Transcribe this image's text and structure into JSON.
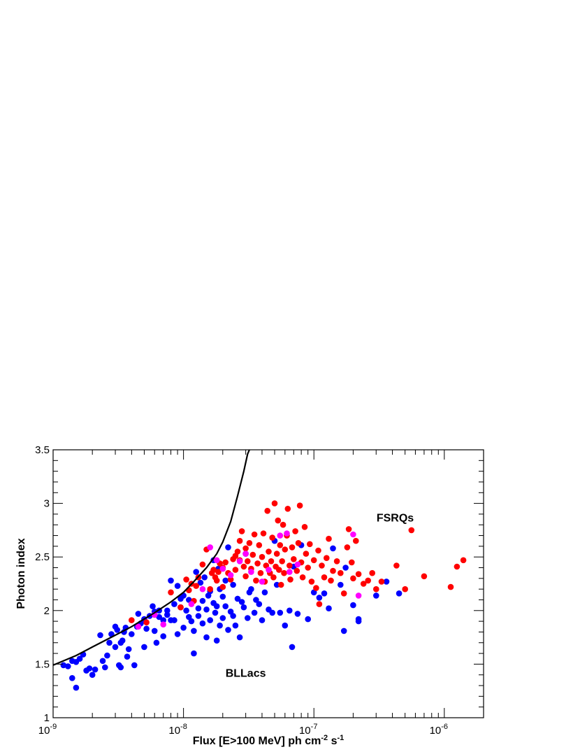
{
  "chart_data": {
    "type": "scatter",
    "title": "",
    "xlabel": "Flux [E>100 MeV] ph cm",
    "xlabel_sup1": "-2",
    "xlabel_mid": " s",
    "xlabel_sup2": "-1",
    "ylabel": "Photon index",
    "x_scale": "log",
    "xlim": [
      1e-09,
      2e-06
    ],
    "ylim": [
      1.0,
      3.5
    ],
    "grid": false,
    "x_ticks": [
      {
        "value": 1e-09,
        "base": "10",
        "exp": "-9"
      },
      {
        "value": 1e-08,
        "base": "10",
        "exp": "-8"
      },
      {
        "value": 1e-07,
        "base": "10",
        "exp": "-7"
      },
      {
        "value": 1e-06,
        "base": "10",
        "exp": "-6"
      }
    ],
    "y_ticks": [
      {
        "value": 1.0,
        "label": "1"
      },
      {
        "value": 1.5,
        "label": "1.5"
      },
      {
        "value": 2.0,
        "label": "2"
      },
      {
        "value": 2.5,
        "label": "2.5"
      },
      {
        "value": 3.0,
        "label": "3"
      },
      {
        "value": 3.5,
        "label": "3.5"
      }
    ],
    "annotations": [
      {
        "text": "FSRQs",
        "x": 4.2e-07,
        "y": 2.87
      },
      {
        "text": "BLLacs",
        "x": 3e-08,
        "y": 1.42
      }
    ],
    "curve": {
      "color": "#000000",
      "points": [
        [
          1e-09,
          1.49
        ],
        [
          1.5e-09,
          1.58
        ],
        [
          2e-09,
          1.66
        ],
        [
          3e-09,
          1.77
        ],
        [
          4e-09,
          1.85
        ],
        [
          6e-09,
          1.98
        ],
        [
          8e-09,
          2.08
        ],
        [
          1e-08,
          2.17
        ],
        [
          1.2e-08,
          2.27
        ],
        [
          1.5e-08,
          2.4
        ],
        [
          1.8e-08,
          2.53
        ],
        [
          2e-08,
          2.64
        ],
        [
          2.3e-08,
          2.83
        ],
        [
          2.6e-08,
          3.07
        ],
        [
          2.9e-08,
          3.3
        ],
        [
          3.1e-08,
          3.46
        ],
        [
          3.2e-08,
          3.5
        ]
      ]
    },
    "series": [
      {
        "color": "#0000ff",
        "points": [
          [
            1.2e-09,
            1.49
          ],
          [
            1.3e-09,
            1.48
          ],
          [
            1.4e-09,
            1.53
          ],
          [
            1.4e-09,
            1.37
          ],
          [
            1.5e-09,
            1.28
          ],
          [
            1.5e-09,
            1.52
          ],
          [
            1.6e-09,
            1.55
          ],
          [
            1.7e-09,
            1.59
          ],
          [
            1.8e-09,
            1.44
          ],
          [
            1.9e-09,
            1.46
          ],
          [
            2e-09,
            1.4
          ],
          [
            2.1e-09,
            1.45
          ],
          [
            2.3e-09,
            1.77
          ],
          [
            2.4e-09,
            1.53
          ],
          [
            2.5e-09,
            1.47
          ],
          [
            2.6e-09,
            1.58
          ],
          [
            2.7e-09,
            1.7
          ],
          [
            2.8e-09,
            1.78
          ],
          [
            3e-09,
            1.85
          ],
          [
            3e-09,
            1.66
          ],
          [
            3.1e-09,
            1.82
          ],
          [
            3.2e-09,
            1.49
          ],
          [
            3.3e-09,
            1.47
          ],
          [
            3.3e-09,
            1.7
          ],
          [
            3.4e-09,
            1.72
          ],
          [
            3.5e-09,
            1.8
          ],
          [
            3.6e-09,
            1.84
          ],
          [
            3.7e-09,
            1.57
          ],
          [
            3.8e-09,
            1.64
          ],
          [
            4e-09,
            1.78
          ],
          [
            4.2e-09,
            1.49
          ],
          [
            4.4e-09,
            1.85
          ],
          [
            4.5e-09,
            1.97
          ],
          [
            4.7e-09,
            1.88
          ],
          [
            5e-09,
            1.66
          ],
          [
            5e-09,
            1.92
          ],
          [
            5.2e-09,
            1.83
          ],
          [
            5.5e-09,
            1.95
          ],
          [
            5.8e-09,
            2.04
          ],
          [
            6e-09,
            1.99
          ],
          [
            6e-09,
            1.81
          ],
          [
            6.2e-09,
            1.7
          ],
          [
            6.5e-09,
            1.94
          ],
          [
            6.5e-09,
            2.0
          ],
          [
            7e-09,
            1.91
          ],
          [
            7e-09,
            1.76
          ],
          [
            7.5e-09,
            2.0
          ],
          [
            7.5e-09,
            1.96
          ],
          [
            8e-09,
            1.91
          ],
          [
            8e-09,
            2.28
          ],
          [
            8.5e-09,
            2.06
          ],
          [
            8.5e-09,
            1.91
          ],
          [
            9e-09,
            2.23
          ],
          [
            9e-09,
            1.78
          ],
          [
            9.5e-09,
            2.03
          ],
          [
            9.5e-09,
            2.11
          ],
          [
            1e-08,
            2.14
          ],
          [
            1e-08,
            1.84
          ],
          [
            1.05e-08,
            2.0
          ],
          [
            1.1e-08,
            1.94
          ],
          [
            1.1e-08,
            2.1
          ],
          [
            1.15e-08,
            1.9
          ],
          [
            1.2e-08,
            1.81
          ],
          [
            1.2e-08,
            1.6
          ],
          [
            1.25e-08,
            2.36
          ],
          [
            1.3e-08,
            2.02
          ],
          [
            1.3e-08,
            1.95
          ],
          [
            1.35e-08,
            2.26
          ],
          [
            1.4e-08,
            1.88
          ],
          [
            1.4e-08,
            2.09
          ],
          [
            1.45e-08,
            2.31
          ],
          [
            1.5e-08,
            2.01
          ],
          [
            1.5e-08,
            1.75
          ],
          [
            1.55e-08,
            2.14
          ],
          [
            1.6e-08,
            2.18
          ],
          [
            1.6e-08,
            1.91
          ],
          [
            1.7e-08,
            2.47
          ],
          [
            1.7e-08,
            2.07
          ],
          [
            1.75e-08,
            1.98
          ],
          [
            1.8e-08,
            1.72
          ],
          [
            1.8e-08,
            2.04
          ],
          [
            1.85e-08,
            2.39
          ],
          [
            1.9e-08,
            2.2
          ],
          [
            1.9e-08,
            1.86
          ],
          [
            2e-08,
            2.13
          ],
          [
            2e-08,
            1.93
          ],
          [
            2.1e-08,
            2.28
          ],
          [
            2.1e-08,
            2.04
          ],
          [
            2.2e-08,
            1.82
          ],
          [
            2.2e-08,
            2.59
          ],
          [
            2.3e-08,
            1.99
          ],
          [
            2.4e-08,
            2.24
          ],
          [
            2.4e-08,
            1.95
          ],
          [
            2.5e-08,
            1.86
          ],
          [
            2.6e-08,
            2.11
          ],
          [
            2.7e-08,
            1.75
          ],
          [
            2.8e-08,
            2.08
          ],
          [
            2.9e-08,
            2.03
          ],
          [
            3e-08,
            2.53
          ],
          [
            3.1e-08,
            1.93
          ],
          [
            3.2e-08,
            2.17
          ],
          [
            3.3e-08,
            2.2
          ],
          [
            3.5e-08,
            1.98
          ],
          [
            3.6e-08,
            2.1
          ],
          [
            3.8e-08,
            2.06
          ],
          [
            4e-08,
            1.91
          ],
          [
            4.2e-08,
            2.17
          ],
          [
            4.5e-08,
            2.01
          ],
          [
            4.8e-08,
            1.98
          ],
          [
            5e-08,
            2.65
          ],
          [
            5.2e-08,
            2.24
          ],
          [
            5.5e-08,
            1.98
          ],
          [
            6e-08,
            1.86
          ],
          [
            6.5e-08,
            2.0
          ],
          [
            6.8e-08,
            1.66
          ],
          [
            7e-08,
            2.41
          ],
          [
            7.5e-08,
            1.97
          ],
          [
            8e-08,
            2.61
          ],
          [
            9e-08,
            1.92
          ],
          [
            1e-07,
            2.17
          ],
          [
            1.1e-07,
            2.12
          ],
          [
            1.2e-07,
            2.16
          ],
          [
            1.3e-07,
            2.02
          ],
          [
            1.4e-07,
            2.58
          ],
          [
            1.6e-07,
            2.24
          ],
          [
            1.7e-07,
            1.81
          ],
          [
            1.75e-07,
            2.4
          ],
          [
            2e-07,
            2.05
          ],
          [
            2.2e-07,
            1.92
          ],
          [
            2.2e-07,
            1.9
          ],
          [
            3e-07,
            2.14
          ],
          [
            3.6e-07,
            2.27
          ],
          [
            4.5e-07,
            2.16
          ]
        ]
      },
      {
        "color": "#ff0000",
        "points": [
          [
            4e-09,
            1.91
          ],
          [
            5.2e-09,
            1.89
          ],
          [
            8e-09,
            2.17
          ],
          [
            9.5e-09,
            2.03
          ],
          [
            1.05e-08,
            2.29
          ],
          [
            1.1e-08,
            2.19
          ],
          [
            1.15e-08,
            2.25
          ],
          [
            1.2e-08,
            2.09
          ],
          [
            1.25e-08,
            2.23
          ],
          [
            1.3e-08,
            2.31
          ],
          [
            1.4e-08,
            2.43
          ],
          [
            1.5e-08,
            2.57
          ],
          [
            1.6e-08,
            2.2
          ],
          [
            1.65e-08,
            2.35
          ],
          [
            1.7e-08,
            2.38
          ],
          [
            1.75e-08,
            2.31
          ],
          [
            1.8e-08,
            2.28
          ],
          [
            1.85e-08,
            2.36
          ],
          [
            1.9e-08,
            2.44
          ],
          [
            2e-08,
            2.4
          ],
          [
            2e-08,
            2.22
          ],
          [
            2.1e-08,
            2.45
          ],
          [
            2.2e-08,
            2.35
          ],
          [
            2.3e-08,
            2.29
          ],
          [
            2.4e-08,
            2.48
          ],
          [
            2.5e-08,
            2.51
          ],
          [
            2.5e-08,
            2.38
          ],
          [
            2.6e-08,
            2.55
          ],
          [
            2.7e-08,
            2.65
          ],
          [
            2.7e-08,
            2.47
          ],
          [
            2.8e-08,
            2.74
          ],
          [
            2.9e-08,
            2.41
          ],
          [
            3e-08,
            2.32
          ],
          [
            3e-08,
            2.58
          ],
          [
            3.1e-08,
            2.46
          ],
          [
            3.2e-08,
            2.63
          ],
          [
            3.3e-08,
            2.39
          ],
          [
            3.4e-08,
            2.52
          ],
          [
            3.5e-08,
            2.71
          ],
          [
            3.6e-08,
            2.28
          ],
          [
            3.7e-08,
            2.44
          ],
          [
            3.8e-08,
            2.61
          ],
          [
            3.9e-08,
            2.35
          ],
          [
            4e-08,
            2.5
          ],
          [
            4.1e-08,
            2.72
          ],
          [
            4.2e-08,
            2.27
          ],
          [
            4.3e-08,
            2.42
          ],
          [
            4.4e-08,
            2.93
          ],
          [
            4.5e-08,
            2.55
          ],
          [
            4.6e-08,
            2.35
          ],
          [
            4.7e-08,
            2.46
          ],
          [
            4.8e-08,
            2.68
          ],
          [
            4.9e-08,
            2.31
          ],
          [
            5e-08,
            3.0
          ],
          [
            5.1e-08,
            2.41
          ],
          [
            5.2e-08,
            2.53
          ],
          [
            5.3e-08,
            2.84
          ],
          [
            5.4e-08,
            2.38
          ],
          [
            5.5e-08,
            2.61
          ],
          [
            5.6e-08,
            2.24
          ],
          [
            5.7e-08,
            2.46
          ],
          [
            5.8e-08,
            2.8
          ],
          [
            5.9e-08,
            2.35
          ],
          [
            6e-08,
            2.57
          ],
          [
            6.2e-08,
            2.7
          ],
          [
            6.3e-08,
            2.95
          ],
          [
            6.5e-08,
            2.42
          ],
          [
            6.6e-08,
            2.29
          ],
          [
            6.8e-08,
            2.59
          ],
          [
            7e-08,
            2.48
          ],
          [
            7.2e-08,
            2.74
          ],
          [
            7.4e-08,
            2.37
          ],
          [
            7.6e-08,
            2.63
          ],
          [
            7.8e-08,
            2.98
          ],
          [
            8e-08,
            2.45
          ],
          [
            8.2e-08,
            2.31
          ],
          [
            8.5e-08,
            2.78
          ],
          [
            8.7e-08,
            2.53
          ],
          [
            9e-08,
            2.4
          ],
          [
            9.3e-08,
            2.62
          ],
          [
            9.6e-08,
            2.27
          ],
          [
            1e-07,
            2.47
          ],
          [
            1.04e-07,
            2.21
          ],
          [
            1.08e-07,
            2.56
          ],
          [
            1.1e-07,
            2.06
          ],
          [
            1.15e-07,
            2.42
          ],
          [
            1.2e-07,
            2.31
          ],
          [
            1.25e-07,
            2.49
          ],
          [
            1.3e-07,
            2.67
          ],
          [
            1.35e-07,
            2.28
          ],
          [
            1.4e-07,
            2.37
          ],
          [
            1.5e-07,
            2.46
          ],
          [
            1.6e-07,
            2.35
          ],
          [
            1.7e-07,
            2.16
          ],
          [
            1.8e-07,
            2.59
          ],
          [
            1.85e-07,
            2.76
          ],
          [
            1.95e-07,
            2.45
          ],
          [
            2e-07,
            2.3
          ],
          [
            2.1e-07,
            2.65
          ],
          [
            2.2e-07,
            2.34
          ],
          [
            2.4e-07,
            2.25
          ],
          [
            2.6e-07,
            2.28
          ],
          [
            2.8e-07,
            2.35
          ],
          [
            3e-07,
            2.2
          ],
          [
            3.3e-07,
            2.27
          ],
          [
            4.3e-07,
            2.42
          ],
          [
            5e-07,
            2.2
          ],
          [
            5.6e-07,
            2.75
          ],
          [
            7e-07,
            2.32
          ],
          [
            1.12e-06,
            2.22
          ],
          [
            1.25e-06,
            2.41
          ],
          [
            1.4e-06,
            2.47
          ]
        ]
      },
      {
        "color": "#ff00ff",
        "points": [
          [
            4.5e-09,
            1.85
          ],
          [
            6e-09,
            1.96
          ],
          [
            7e-09,
            1.87
          ],
          [
            1.15e-08,
            2.06
          ],
          [
            1.4e-08,
            2.2
          ],
          [
            1.6e-08,
            2.59
          ],
          [
            1.8e-08,
            2.47
          ],
          [
            2e-08,
            2.39
          ],
          [
            2.3e-08,
            2.33
          ],
          [
            2.7e-08,
            2.46
          ],
          [
            3e-08,
            2.53
          ],
          [
            3.3e-08,
            2.36
          ],
          [
            4e-08,
            2.27
          ],
          [
            4.5e-08,
            2.38
          ],
          [
            5.5e-08,
            2.7
          ],
          [
            6.2e-08,
            2.72
          ],
          [
            6.5e-08,
            2.36
          ],
          [
            7.5e-08,
            2.43
          ],
          [
            2e-07,
            2.71
          ],
          [
            2.2e-07,
            2.14
          ]
        ]
      }
    ]
  }
}
